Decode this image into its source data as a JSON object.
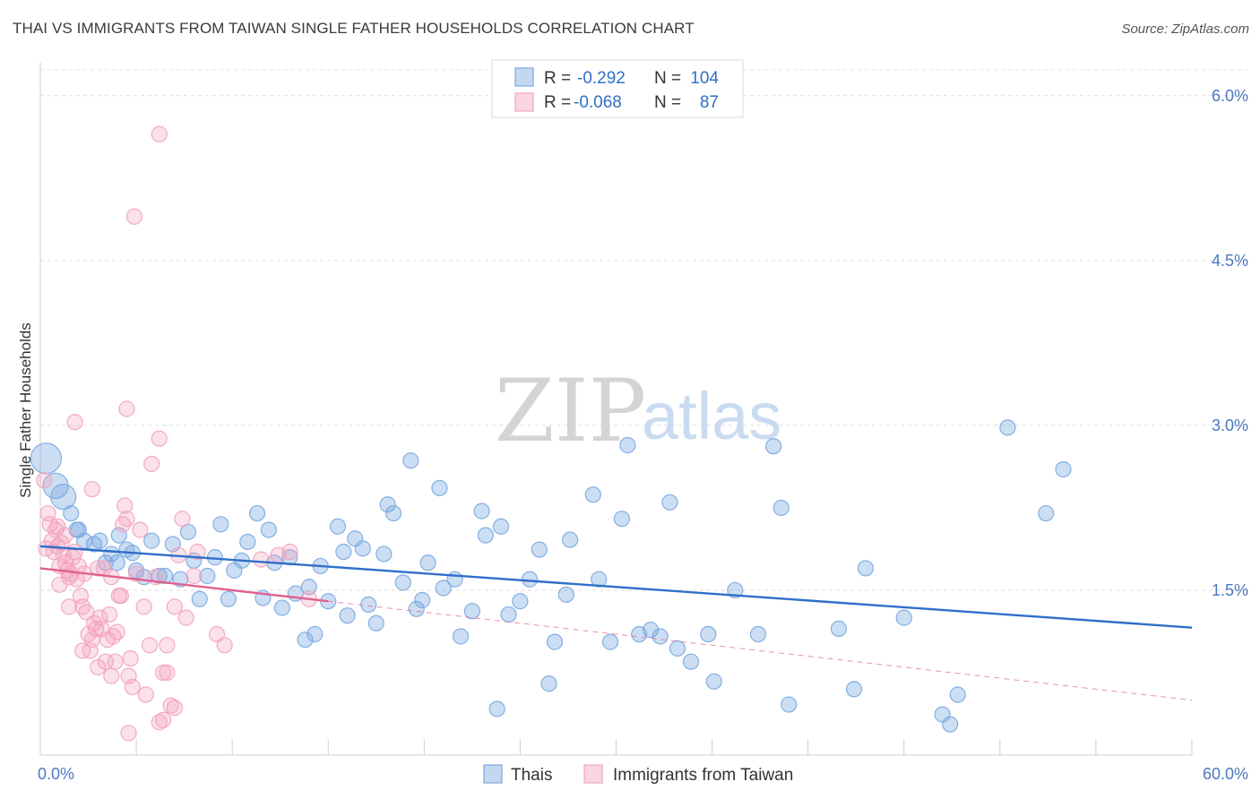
{
  "title": "THAI VS IMMIGRANTS FROM TAIWAN SINGLE FATHER HOUSEHOLDS CORRELATION CHART",
  "source": "Source: ZipAtlas.com",
  "watermark": {
    "zip": "ZIP",
    "atlas": "atlas"
  },
  "chart_data": {
    "type": "scatter",
    "xlabel": "",
    "ylabel": "Single Father Households",
    "xlim": [
      0,
      60
    ],
    "ylim": [
      0,
      6.3
    ],
    "x_tick_labels": [
      "0.0%",
      "60.0%"
    ],
    "y_ticks": [
      1.5,
      3.0,
      4.5,
      6.0
    ],
    "y_tick_labels": [
      "1.5%",
      "3.0%",
      "4.5%",
      "6.0%"
    ],
    "grid": true,
    "legend_position": "top-center",
    "stats": [
      {
        "r_label": "R =",
        "r_value": "-0.292",
        "n_label": "N =",
        "n_value": "104"
      },
      {
        "r_label": "R =",
        "r_value": "-0.068",
        "n_label": "N =",
        "n_value": "87"
      }
    ],
    "series": [
      {
        "name": "Thais",
        "color": "#7aa7e0",
        "line_color": "#2f6fc8",
        "trend": {
          "x0": 0,
          "y0": 1.9,
          "x1": 60,
          "y1": 1.16,
          "style": "solid"
        },
        "points": [
          [
            0.3,
            2.7
          ],
          [
            0.8,
            2.45
          ],
          [
            1.2,
            2.35
          ],
          [
            1.6,
            2.2
          ],
          [
            1.9,
            2.05
          ],
          [
            2.3,
            1.95
          ],
          [
            2.8,
            1.92
          ],
          [
            3.1,
            1.95
          ],
          [
            3.4,
            1.75
          ],
          [
            3.7,
            1.83
          ],
          [
            4.0,
            1.75
          ],
          [
            4.5,
            1.87
          ],
          [
            4.8,
            1.84
          ],
          [
            5.0,
            1.68
          ],
          [
            5.4,
            1.62
          ],
          [
            5.8,
            1.95
          ],
          [
            6.2,
            1.63
          ],
          [
            6.5,
            1.63
          ],
          [
            6.9,
            1.92
          ],
          [
            7.3,
            1.6
          ],
          [
            7.7,
            2.03
          ],
          [
            8.0,
            1.77
          ],
          [
            8.3,
            1.42
          ],
          [
            8.7,
            1.63
          ],
          [
            9.1,
            1.8
          ],
          [
            9.4,
            2.1
          ],
          [
            9.8,
            1.42
          ],
          [
            10.1,
            1.68
          ],
          [
            10.5,
            1.77
          ],
          [
            10.8,
            1.94
          ],
          [
            11.3,
            2.2
          ],
          [
            11.6,
            1.43
          ],
          [
            11.9,
            2.05
          ],
          [
            12.2,
            1.75
          ],
          [
            12.6,
            1.34
          ],
          [
            13.0,
            1.8
          ],
          [
            13.3,
            1.47
          ],
          [
            13.8,
            1.05
          ],
          [
            14.0,
            1.53
          ],
          [
            14.3,
            1.1
          ],
          [
            14.6,
            1.72
          ],
          [
            15.0,
            1.4
          ],
          [
            15.5,
            2.08
          ],
          [
            15.8,
            1.85
          ],
          [
            16.0,
            1.27
          ],
          [
            16.4,
            1.97
          ],
          [
            16.8,
            1.88
          ],
          [
            17.1,
            1.37
          ],
          [
            17.5,
            1.2
          ],
          [
            17.9,
            1.83
          ],
          [
            18.1,
            2.28
          ],
          [
            18.4,
            2.2
          ],
          [
            18.9,
            1.57
          ],
          [
            19.3,
            2.68
          ],
          [
            19.6,
            1.33
          ],
          [
            19.9,
            1.41
          ],
          [
            20.2,
            1.75
          ],
          [
            20.8,
            2.43
          ],
          [
            21.0,
            1.52
          ],
          [
            21.6,
            1.6
          ],
          [
            21.9,
            1.08
          ],
          [
            22.5,
            1.31
          ],
          [
            23.0,
            2.22
          ],
          [
            23.2,
            2.0
          ],
          [
            23.8,
            0.42
          ],
          [
            24.0,
            2.08
          ],
          [
            24.4,
            1.28
          ],
          [
            25.0,
            1.4
          ],
          [
            25.5,
            1.6
          ],
          [
            26.0,
            1.87
          ],
          [
            26.5,
            0.65
          ],
          [
            26.8,
            1.03
          ],
          [
            27.4,
            1.46
          ],
          [
            27.6,
            1.96
          ],
          [
            28.8,
            2.37
          ],
          [
            29.1,
            1.6
          ],
          [
            29.7,
            1.03
          ],
          [
            30.3,
            2.15
          ],
          [
            30.6,
            2.82
          ],
          [
            31.2,
            1.1
          ],
          [
            31.8,
            1.14
          ],
          [
            32.3,
            1.08
          ],
          [
            32.8,
            2.3
          ],
          [
            33.2,
            0.97
          ],
          [
            33.9,
            0.85
          ],
          [
            34.8,
            1.1
          ],
          [
            35.1,
            0.67
          ],
          [
            36.2,
            1.5
          ],
          [
            37.4,
            1.1
          ],
          [
            38.2,
            2.81
          ],
          [
            38.6,
            2.25
          ],
          [
            39.0,
            0.46
          ],
          [
            41.6,
            1.15
          ],
          [
            42.4,
            0.6
          ],
          [
            43.0,
            1.7
          ],
          [
            45.0,
            1.25
          ],
          [
            47.0,
            0.37
          ],
          [
            47.4,
            0.28
          ],
          [
            47.8,
            0.55
          ],
          [
            50.4,
            2.98
          ],
          [
            52.4,
            2.2
          ],
          [
            53.3,
            2.6
          ],
          [
            2.0,
            2.05
          ],
          [
            4.1,
            2.0
          ]
        ]
      },
      {
        "name": "Immigrants from Taiwan",
        "color": "#f2a3bd",
        "line_color": "#e0608f",
        "trend": {
          "x0": 0,
          "y0": 1.7,
          "x1": 15,
          "y1": 1.4,
          "style": "solid",
          "ext_x1": 60,
          "ext_y1": 0.5
        },
        "points": [
          [
            0.2,
            2.5
          ],
          [
            0.4,
            2.2
          ],
          [
            0.5,
            2.1
          ],
          [
            0.6,
            1.95
          ],
          [
            0.7,
            1.85
          ],
          [
            0.8,
            2.05
          ],
          [
            0.9,
            1.9
          ],
          [
            1.0,
            1.72
          ],
          [
            1.1,
            1.93
          ],
          [
            1.2,
            1.82
          ],
          [
            1.3,
            1.75
          ],
          [
            1.4,
            1.68
          ],
          [
            1.5,
            1.62
          ],
          [
            1.6,
            1.65
          ],
          [
            1.7,
            1.8
          ],
          [
            1.8,
            1.85
          ],
          [
            1.9,
            1.6
          ],
          [
            2.0,
            1.72
          ],
          [
            2.1,
            1.45
          ],
          [
            2.2,
            1.35
          ],
          [
            2.3,
            1.65
          ],
          [
            2.4,
            1.3
          ],
          [
            2.5,
            1.1
          ],
          [
            2.6,
            0.95
          ],
          [
            2.7,
            1.05
          ],
          [
            2.8,
            1.2
          ],
          [
            2.9,
            1.15
          ],
          [
            3.0,
            1.7
          ],
          [
            3.1,
            1.25
          ],
          [
            3.2,
            1.15
          ],
          [
            3.3,
            1.7
          ],
          [
            3.4,
            0.85
          ],
          [
            3.5,
            1.05
          ],
          [
            3.6,
            1.28
          ],
          [
            3.7,
            1.62
          ],
          [
            3.8,
            1.08
          ],
          [
            3.9,
            0.85
          ],
          [
            4.0,
            1.12
          ],
          [
            4.1,
            1.45
          ],
          [
            4.2,
            1.45
          ],
          [
            4.3,
            2.1
          ],
          [
            4.4,
            2.27
          ],
          [
            4.5,
            2.15
          ],
          [
            4.6,
            0.72
          ],
          [
            4.7,
            0.88
          ],
          [
            4.8,
            0.62
          ],
          [
            5.0,
            1.65
          ],
          [
            5.2,
            2.05
          ],
          [
            5.4,
            1.35
          ],
          [
            5.5,
            0.55
          ],
          [
            5.7,
            1.0
          ],
          [
            6.0,
            1.62
          ],
          [
            6.2,
            0.3
          ],
          [
            6.4,
            0.75
          ],
          [
            6.6,
            1.0
          ],
          [
            6.8,
            0.45
          ],
          [
            7.0,
            1.35
          ],
          [
            7.2,
            1.82
          ],
          [
            7.4,
            2.15
          ],
          [
            7.6,
            1.25
          ],
          [
            8.0,
            1.63
          ],
          [
            8.2,
            1.85
          ],
          [
            9.2,
            1.1
          ],
          [
            9.6,
            1.0
          ],
          [
            11.5,
            1.78
          ],
          [
            12.4,
            1.82
          ],
          [
            13.0,
            1.85
          ],
          [
            14.0,
            1.42
          ],
          [
            6.2,
            5.65
          ],
          [
            4.9,
            4.9
          ],
          [
            4.5,
            3.15
          ],
          [
            1.8,
            3.03
          ],
          [
            6.2,
            2.88
          ],
          [
            5.8,
            2.65
          ],
          [
            2.7,
            2.42
          ],
          [
            0.9,
            2.08
          ],
          [
            1.0,
            1.55
          ],
          [
            1.5,
            1.35
          ],
          [
            2.2,
            0.95
          ],
          [
            3.0,
            0.8
          ],
          [
            3.7,
            0.72
          ],
          [
            4.6,
            0.2
          ],
          [
            6.4,
            0.32
          ],
          [
            6.6,
            0.75
          ],
          [
            7.0,
            0.43
          ],
          [
            1.3,
            2.0
          ],
          [
            0.3,
            1.88
          ]
        ]
      }
    ]
  }
}
